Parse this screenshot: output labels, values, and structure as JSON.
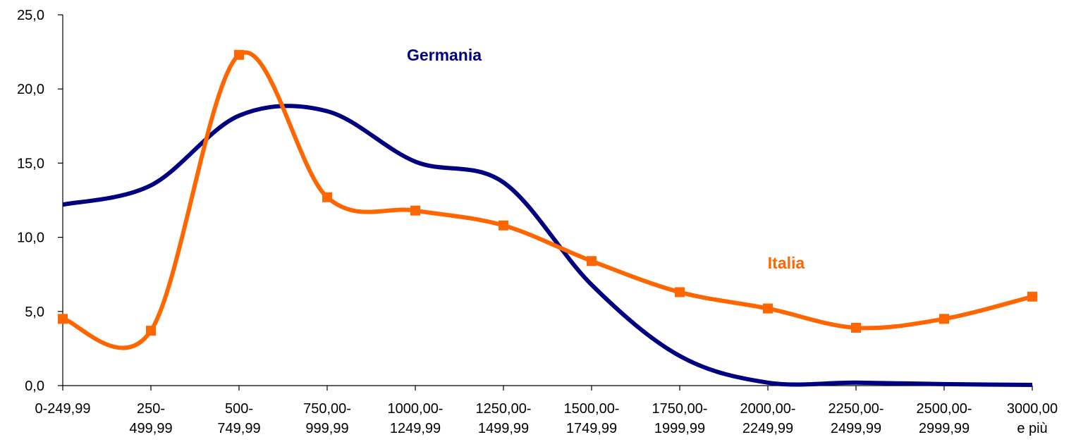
{
  "chart_data": {
    "type": "line",
    "categories": [
      "0-249,99",
      "250-\n499,99",
      "500-\n749,99",
      "750,00-\n999,99",
      "1000,00-\n1249,99",
      "1250,00-\n1499,99",
      "1500,00-\n1749,99",
      "1750,00-\n1999,99",
      "2000,00-\n2249,99",
      "2250,00-\n2499,99",
      "2500,00-\n2999,99",
      "3000,00\ne più"
    ],
    "series": [
      {
        "name": "Germania",
        "color": "#000080",
        "markers": false,
        "values": [
          12.2,
          13.5,
          18.2,
          18.5,
          15.1,
          13.7,
          6.8,
          2.0,
          0.2,
          0.2,
          0.1,
          0.05
        ]
      },
      {
        "name": "Italia",
        "color": "#ff6600",
        "markers": true,
        "values": [
          4.5,
          3.7,
          22.3,
          12.7,
          11.8,
          10.8,
          8.4,
          6.3,
          5.2,
          3.9,
          4.5,
          6.0
        ]
      }
    ],
    "ylim": [
      0,
      25
    ],
    "yticks": [
      {
        "value": 0,
        "label": "0,0"
      },
      {
        "value": 5,
        "label": "5,0"
      },
      {
        "value": 10,
        "label": "10,0"
      },
      {
        "value": 15,
        "label": "15,0"
      },
      {
        "value": 20,
        "label": "20,0"
      },
      {
        "value": 25,
        "label": "25,0"
      }
    ],
    "smooth": true,
    "grid": false
  }
}
